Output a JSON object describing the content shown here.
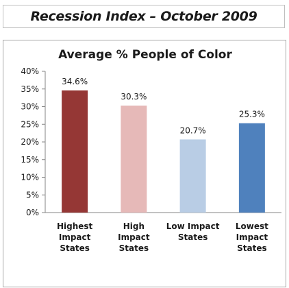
{
  "header": {
    "title": "Recession Index – October 2009"
  },
  "chart_data": {
    "type": "bar",
    "title": "Average % People of Color",
    "xlabel": "",
    "ylabel": "",
    "ylim": [
      0,
      40
    ],
    "y_ticks": [
      "40%",
      "35%",
      "30%",
      "25%",
      "20%",
      "15%",
      "10%",
      "5%",
      "0%"
    ],
    "y_tick_values": [
      40,
      35,
      30,
      25,
      20,
      15,
      10,
      5,
      0
    ],
    "grid": false,
    "legend": "none",
    "categories": [
      [
        "Highest",
        "Impact",
        "States"
      ],
      [
        "High",
        "Impact",
        "States"
      ],
      [
        "Low Impact",
        "States"
      ],
      [
        "Lowest",
        "Impact",
        "States"
      ]
    ],
    "values": [
      34.6,
      30.3,
      20.7,
      25.3
    ],
    "data_labels": [
      "34.6%",
      "30.3%",
      "20.7%",
      "25.3%"
    ],
    "colors": [
      "#953735",
      "#e6b9b8",
      "#b9cde5",
      "#4f81bd"
    ]
  }
}
